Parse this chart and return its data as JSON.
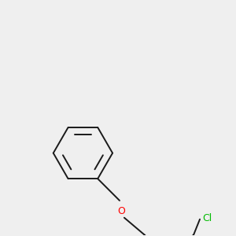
{
  "bg_color": "#efefef",
  "bond_color": "#1a1a1a",
  "o_color": "#ff0000",
  "cl_color": "#00bb00",
  "line_width": 1.4,
  "figsize": [
    3.0,
    3.0
  ],
  "dpi": 100
}
